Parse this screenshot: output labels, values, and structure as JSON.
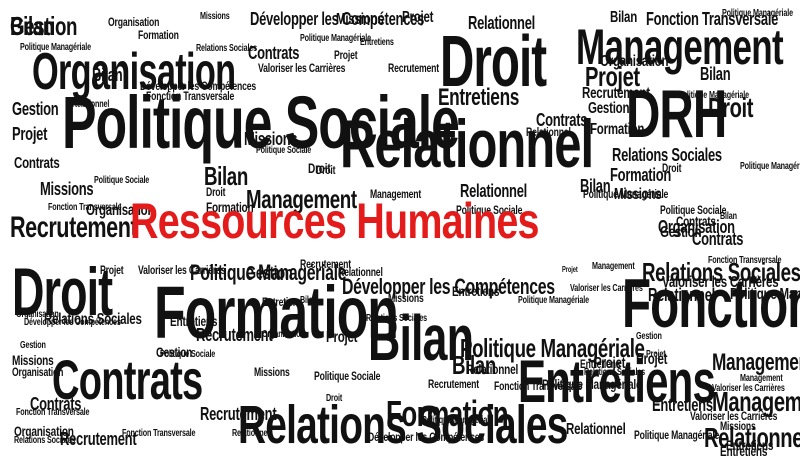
{
  "colors": {
    "text": "#111111",
    "hero": "#e41b1b",
    "background": "#ffffff"
  },
  "hero": "Ressources Humaines",
  "words": [
    "Gestion",
    "Organisation",
    "Missions",
    "Développer les Compétences",
    "Missions",
    "Relationnel",
    "Projet",
    "Politique Managériale",
    "Bilan",
    "Fonction Transversale",
    "Politique Managériale",
    "Formation",
    "Contrats",
    "Relations Sociales",
    "Organisation",
    "Politique Managériale",
    "Entretiens",
    "Projet",
    "Droit",
    "Management",
    "Valoriser les Carrières",
    "Recrutement",
    "Organisation",
    "Gestion",
    "Relationnel",
    "Bilan",
    "Développer les Compétences",
    "Fonction Transversale",
    "Entretiens",
    "Recrutement",
    "Politique Managériale",
    "Politique Sociale",
    "Relationnel",
    "Contrats",
    "Projet",
    "Bilan",
    "Projet",
    "Missions",
    "Relationnel",
    "Gestion",
    "DRH",
    "Droit",
    "Politique Sociale",
    "Droit",
    "Formation",
    "Droit",
    "Bilan",
    "Relations Sociales",
    "Droit",
    "Politique Managériale",
    "Formation",
    "Contrats",
    "Missions",
    "Droit",
    "Management",
    "Politique Sociale",
    "Management",
    "Relationnel",
    "Missions",
    "Politique Managériale",
    "Bilan",
    "Recrutement",
    "Fonction Transversale",
    "Organisation",
    "Formation",
    "Politique Sociale",
    "Politique Sociale",
    "Contrats",
    "Bilan",
    "Organisation",
    "Gestion",
    "Contrats",
    "Droit",
    "Projet",
    "Valoriser les Carrières",
    "Politique Managériale",
    "Gestion",
    "Recrutement",
    "Relationnel",
    "Projet",
    "Management",
    "Relations Sociales",
    "Fonction Transversale",
    "Valoriser les Carrières",
    "Politique Managériale",
    "Formation",
    "Développer les Compétences",
    "Entretiens",
    "Missions",
    "Relations Sociales",
    "Bilan",
    "Politique Managériale",
    "Valoriser les Carrières",
    "Relationnel",
    "Fonction Transversale",
    "Organisation",
    "Relations Sociales",
    "Développer les Compétences",
    "Entretiens",
    "Recrutement",
    "Entretiens",
    "Projet",
    "Bilan",
    "Gestion",
    "Projet",
    "Gestion",
    "Organisation",
    "Gestion",
    "Politique Managériale",
    "Bilan",
    "Projet",
    "Missions",
    "Politique Sociale",
    "Organisation",
    "Missions",
    "Projet",
    "Entretiens",
    "Contrats",
    "Management",
    "Fonction Transversale",
    "Relations Sociales",
    "Valoriser les Carrières",
    "Politique Sociale",
    "Recrutement",
    "Politique Managériale",
    "Relationnel",
    "Entretiens",
    "Management",
    "Contrats",
    "Recrutement",
    "Relations Sociales",
    "Droit",
    "Politique Managériale",
    "Relationnel",
    "Relationnel",
    "Organisation",
    "Fonction Transversale",
    "Développer les Compétences",
    "Politique Managériale",
    "Relationnel",
    "Formation",
    "Entretiens",
    "Recrutement",
    "Relations Sociales",
    "Valoriser les Carrières",
    "Fonction Transversale",
    "Entretiens",
    "Management",
    "Missions",
    "Entretiens",
    "Bilan"
  ]
}
